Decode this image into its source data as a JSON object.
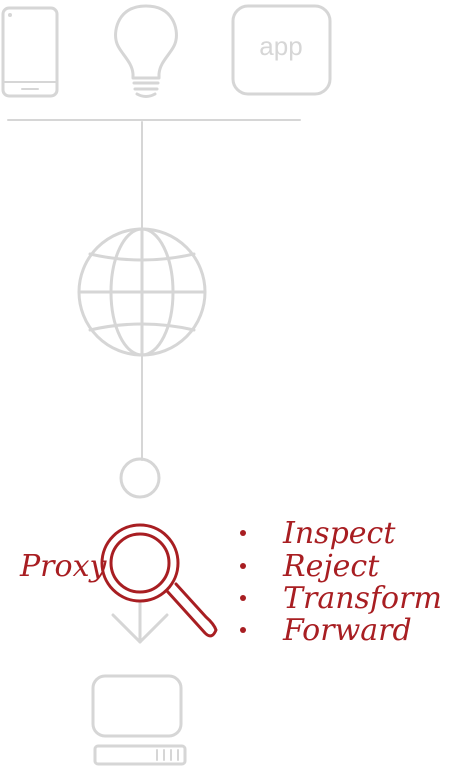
{
  "icons": {
    "tablet": "tablet-icon",
    "bulb": "lightbulb-icon",
    "app": "app-icon",
    "globe": "globe-icon",
    "node": "circle-node-icon",
    "magnifier": "magnifying-glass-icon",
    "arrow": "arrow-down-icon",
    "server": "server-icon"
  },
  "labels": {
    "app": "app",
    "proxy": "Proxy"
  },
  "actions": [
    "Inspect",
    "Reject",
    "Transform",
    "Forward"
  ],
  "colors": {
    "gray": "#d6d6d6",
    "accent": "#a81e22"
  }
}
